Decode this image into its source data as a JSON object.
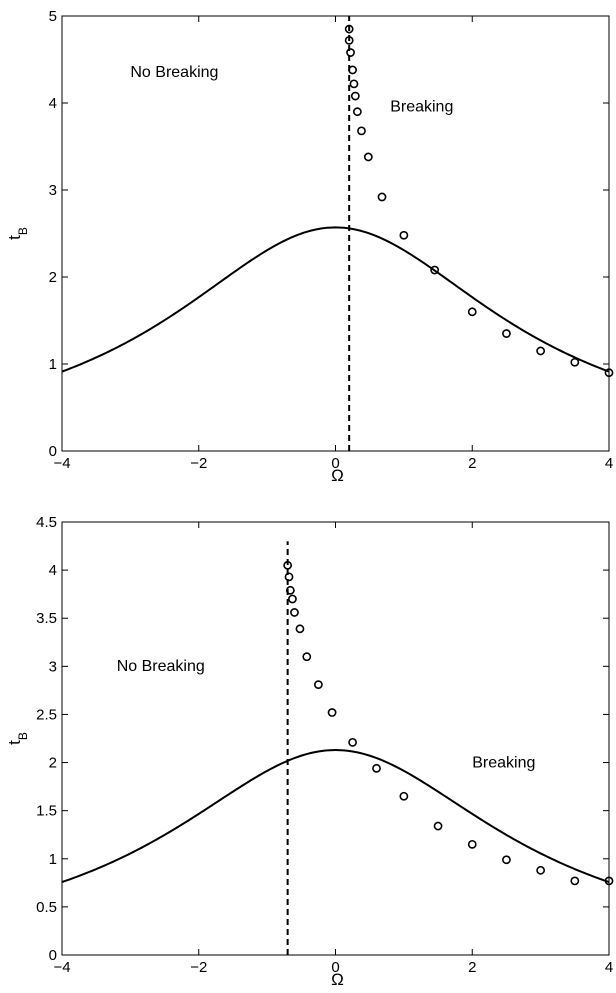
{
  "chart_data": [
    {
      "type": "line",
      "xlabel": "Ω",
      "ylabel": "t",
      "ylabel_sub": "B",
      "xlim": [
        -4,
        4
      ],
      "ylim": [
        0,
        5
      ],
      "xticks": [
        -4,
        -2,
        0,
        2,
        4
      ],
      "yticks": [
        0,
        1,
        2,
        3,
        4,
        5
      ],
      "xtick_labels": [
        "−4",
        "−2",
        "0",
        "2",
        "4"
      ],
      "ytick_labels": [
        "0",
        "1",
        "2",
        "3",
        "4",
        "5"
      ],
      "grid": false,
      "annotations": [
        {
          "text": "No Breaking",
          "x": -3.0,
          "y": 4.3
        },
        {
          "text": "Breaking",
          "x": 0.8,
          "y": 3.9
        }
      ],
      "series": [
        {
          "style": "solid-line",
          "formula": "2.57/(1+0.1135*x^2)",
          "x_range": [
            -4,
            4
          ],
          "peak": [
            0,
            2.57
          ]
        },
        {
          "style": "dashed-vline",
          "x": 0.2,
          "y_range": [
            0,
            5
          ]
        },
        {
          "style": "circle-markers",
          "x": [
            0.2,
            0.2,
            0.22,
            0.25,
            0.27,
            0.29,
            0.32,
            0.38,
            0.48,
            0.68,
            1.0,
            1.45,
            2.0,
            2.5,
            3.0,
            3.5,
            4.0
          ],
          "y": [
            4.85,
            4.72,
            4.58,
            4.38,
            4.22,
            4.08,
            3.9,
            3.68,
            3.38,
            2.92,
            2.48,
            2.08,
            1.6,
            1.35,
            1.15,
            1.02,
            0.9
          ]
        }
      ]
    },
    {
      "type": "line",
      "xlabel": "Ω",
      "ylabel": "t",
      "ylabel_sub": "B",
      "xlim": [
        -4,
        4
      ],
      "ylim": [
        0,
        4.5
      ],
      "xticks": [
        -4,
        -2,
        0,
        2,
        4
      ],
      "yticks": [
        0,
        0.5,
        1,
        1.5,
        2,
        2.5,
        3,
        3.5,
        4,
        4.5
      ],
      "xtick_labels": [
        "−4",
        "−2",
        "0",
        "2",
        "4"
      ],
      "ytick_labels": [
        "0",
        "0.5",
        "1",
        "1.5",
        "2",
        "2.5",
        "3",
        "3.5",
        "4",
        "4.5"
      ],
      "grid": false,
      "annotations": [
        {
          "text": "No Breaking",
          "x": -3.2,
          "y": 2.95
        },
        {
          "text": "Breaking",
          "x": 2.0,
          "y": 1.95
        }
      ],
      "series": [
        {
          "style": "solid-line",
          "formula": "2.13/(1+0.1131*x^2)",
          "x_range": [
            -4,
            4
          ],
          "peak": [
            0,
            2.13
          ]
        },
        {
          "style": "dashed-vline",
          "x": -0.7,
          "y_range": [
            0,
            4.3
          ]
        },
        {
          "style": "circle-markers",
          "x": [
            -0.7,
            -0.68,
            -0.66,
            -0.63,
            -0.6,
            -0.52,
            -0.42,
            -0.25,
            -0.05,
            0.25,
            0.6,
            1.0,
            1.5,
            2.0,
            2.5,
            3.0,
            3.5,
            4.0
          ],
          "y": [
            4.05,
            3.93,
            3.79,
            3.7,
            3.56,
            3.39,
            3.1,
            2.81,
            2.52,
            2.21,
            1.94,
            1.65,
            1.34,
            1.15,
            0.99,
            0.88,
            0.77,
            0.77
          ]
        }
      ]
    }
  ]
}
